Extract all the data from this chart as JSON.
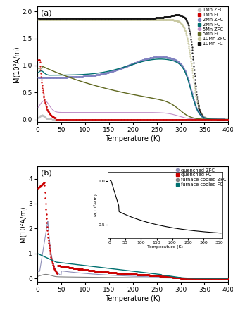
{
  "panel_a": {
    "ylabel": "M(10²A/m)",
    "xlabel": "Temperature (K)",
    "xlim": [
      0,
      400
    ],
    "ylim": [
      -0.05,
      2.1
    ],
    "yticks": [
      0,
      0.5,
      1.0,
      1.5,
      2.0
    ],
    "xticks": [
      0,
      50,
      100,
      150,
      200,
      250,
      300,
      350,
      400
    ],
    "label_a": "(a)"
  },
  "panel_b": {
    "ylabel": "M(10²A/m)",
    "xlabel": "Temperature (K)",
    "xlim": [
      0,
      400
    ],
    "ylim": [
      -0.15,
      4.5
    ],
    "yticks": [
      0,
      1,
      2,
      3,
      4
    ],
    "xticks": [
      0,
      50,
      100,
      150,
      200,
      250,
      300,
      350,
      400
    ],
    "label_b": "(b)",
    "inset": {
      "xlim": [
        -5,
        360
      ],
      "ylim": [
        0.35,
        1.1
      ],
      "yticks": [
        0.5,
        1.0
      ],
      "xticks": [
        0,
        50,
        100,
        150,
        200,
        250,
        300,
        350
      ],
      "xlabel": "Temperature (K)",
      "ylabel": "M(10²A/m)"
    }
  },
  "colors": {
    "mn1_zfc": "#c0c0c0",
    "mn1_fc": "#cc0000",
    "mn2_zfc": "#8080c0",
    "mn2_fc": "#007070",
    "mn5_zfc": "#c090c8",
    "mn5_fc": "#606820",
    "mn10_zfc": "#c8c8a0",
    "mn10_fc": "#101010",
    "q_zfc": "#9090b8",
    "q_fc": "#cc0000",
    "fc_zfc": "#808080",
    "fc_fc": "#007070"
  }
}
